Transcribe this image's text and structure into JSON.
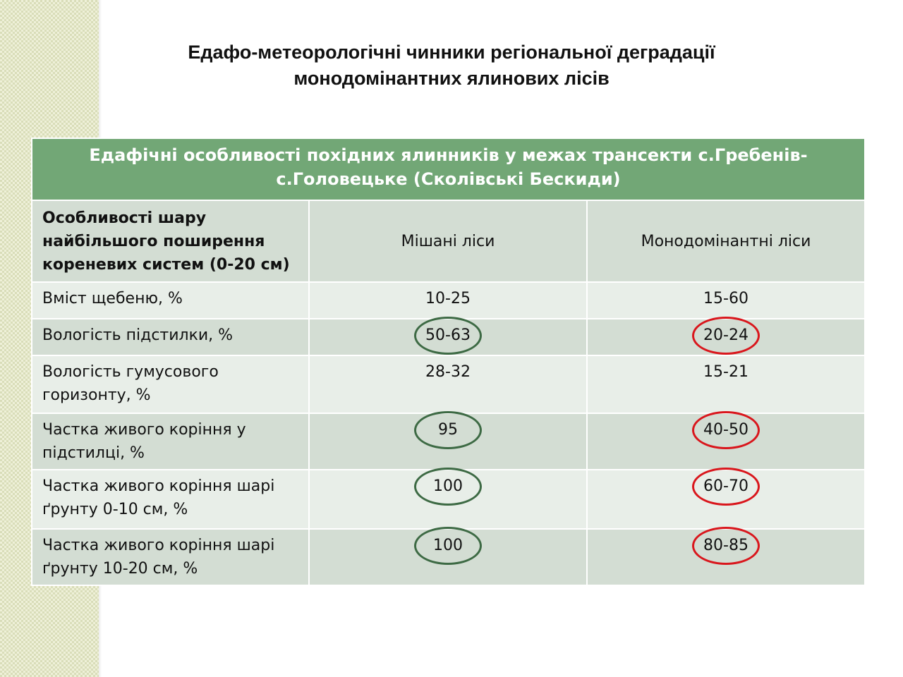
{
  "slide": {
    "title_line1": "Едафо-метеорологічні чинники регіональної деградації",
    "title_line2": "монодомінантних ялинових лісів"
  },
  "table": {
    "caption_line1": "Едафічні особливості похідних ялинників у межах трансекти с.Гребенів-",
    "caption_line2": "с.Головецьке  (Сколівські Бескиди)",
    "header": {
      "feature": "Особливості шару найбільшого поширення кореневих систем (0-20 см)",
      "mixed": "Мішані ліси",
      "mono": "Монодомінантні ліси"
    },
    "rows": [
      {
        "label": "Вміст щебеню, %",
        "mixed": "10-25",
        "mono": "15-60",
        "circled": false
      },
      {
        "label": "Вологість підстилки, %",
        "mixed": "50-63",
        "mono": "20-24",
        "circled": true
      },
      {
        "label": "Вологість гумусового горизонту, %",
        "mixed": "28-32",
        "mono": "15-21",
        "circled": false
      },
      {
        "label": "Частка живого коріння у підстилці, %",
        "mixed": "95",
        "mono": "40-50",
        "circled": true
      },
      {
        "label": "Частка живого коріння шарі ґрунту 0-10 см, %",
        "mixed": "100",
        "mono": "60-70",
        "circled": true
      },
      {
        "label": "Частка живого коріння шарі ґрунту 10-20 см, %",
        "mixed": "100",
        "mono": "80-85",
        "circled": true
      }
    ]
  },
  "colors": {
    "caption_bg": "#72a776",
    "row_dark": "#d3ddd3",
    "row_light": "#e8eee8",
    "circle_mixed": "#3d6a44",
    "circle_mono": "#d9161c"
  }
}
